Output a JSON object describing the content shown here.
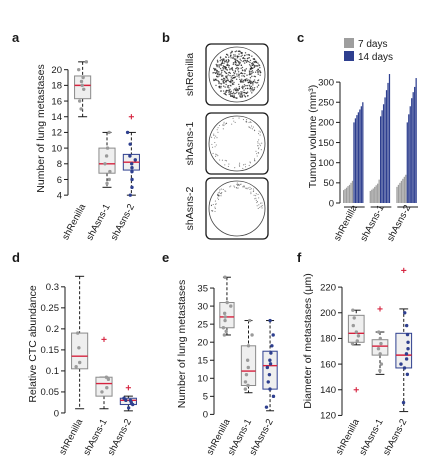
{
  "colors": {
    "axis": "#1a1a1a",
    "box_fill": "#efefef",
    "box_edge_gray": "#8a8a8a",
    "box_edge_blue": "#2e3f8f",
    "median": "#d6223e",
    "outlier": "#d6223e",
    "point_gray": "#9a9a9a",
    "point_blue": "#2e3f8f",
    "bar_7days": "#9e9e9e",
    "bar_14days": "#2e3f8f",
    "plate_edge": "#1a1a1a"
  },
  "chart_data": [
    {
      "panel": "a",
      "type": "box",
      "ylabel": "Number of lung metastases",
      "yticks": [
        4,
        6,
        8,
        10,
        12,
        14,
        16,
        18,
        20
      ],
      "ylim": [
        3,
        22
      ],
      "categories": [
        "shRenilla",
        "shAsns-1",
        "shAsns-2"
      ],
      "groups": [
        {
          "name": "shRenilla",
          "min": 14,
          "q1": 16.3,
          "median": 18,
          "q3": 19.2,
          "max": 21,
          "points": [
            21,
            20,
            19,
            18.5,
            18,
            17.5,
            16,
            15
          ],
          "outliers": [],
          "edge": "gray"
        },
        {
          "name": "shAsns-1",
          "min": 5,
          "q1": 6.8,
          "median": 8,
          "q3": 10,
          "max": 12,
          "points": [
            12,
            10,
            9,
            8,
            7,
            6,
            5.5
          ],
          "outliers": [],
          "edge": "gray"
        },
        {
          "name": "shAsns-2",
          "min": 4,
          "q1": 7.2,
          "median": 8.2,
          "q3": 9.2,
          "max": 12,
          "points": [
            12,
            10.5,
            9,
            8.5,
            8,
            7.5,
            7,
            6,
            5,
            4
          ],
          "outliers": [
            14
          ],
          "edge": "blue"
        }
      ]
    },
    {
      "panel": "b",
      "type": "image",
      "row_labels": [
        "shRenilla",
        "shAsns-1",
        "shAsns-2"
      ]
    },
    {
      "panel": "c",
      "type": "bar",
      "ylabel": "Tumour volume (mm³)",
      "yticks": [
        0,
        50,
        100,
        150,
        200,
        250,
        300
      ],
      "ylim": [
        0,
        330
      ],
      "categories": [
        "shRenilla",
        "shAsns-1",
        "shAsns-2"
      ],
      "legend": [
        "7 days",
        "14 days"
      ],
      "legend_position": "top-left",
      "series": [
        {
          "name": "7 days",
          "values_by_group": [
            [
              32,
              35,
              38,
              42,
              45,
              50,
              55
            ],
            [
              30,
              33,
              36,
              40,
              44,
              48,
              58
            ],
            [
              40,
              45,
              50,
              55,
              60,
              65,
              70
            ]
          ]
        },
        {
          "name": "14 days",
          "values_by_group": [
            [
              200,
              210,
              218,
              225,
              232,
              240,
              250
            ],
            [
              215,
              230,
              245,
              262,
              280,
              298,
              320
            ],
            [
              200,
              220,
              240,
              260,
              275,
              288,
              310
            ]
          ]
        }
      ]
    },
    {
      "panel": "d",
      "type": "box",
      "ylabel": "Relative CTC abundance",
      "yticks": [
        0,
        0.05,
        0.1,
        0.15,
        0.2,
        0.25,
        0.3
      ],
      "ytick_labels": [
        "0",
        "0.05",
        "0.1",
        "0.15",
        "0.2",
        "0.25",
        "0.3"
      ],
      "ylim": [
        -0.012,
        0.34
      ],
      "categories": [
        "shRenilla",
        "shAsns-1",
        "shAsns-2"
      ],
      "groups": [
        {
          "name": "shRenilla",
          "min": 0.01,
          "q1": 0.105,
          "median": 0.135,
          "q3": 0.19,
          "max": 0.325,
          "points": [
            0.19,
            0.155,
            0.12,
            0.11
          ],
          "outliers": [],
          "edge": "gray"
        },
        {
          "name": "shAsns-1",
          "min": 0.01,
          "q1": 0.04,
          "median": 0.07,
          "q3": 0.085,
          "max": 0.085,
          "points": [
            0.085,
            0.08,
            0.06,
            0.05
          ],
          "outliers": [
            0.175
          ],
          "edge": "gray"
        },
        {
          "name": "shAsns-2",
          "min": 0.005,
          "q1": 0.02,
          "median": 0.03,
          "q3": 0.035,
          "max": 0.04,
          "points": [
            0.035,
            0.03,
            0.03,
            0.025,
            0.02,
            0.012
          ],
          "outliers": [
            0.06
          ],
          "edge": "blue"
        }
      ]
    },
    {
      "panel": "e",
      "type": "box",
      "ylabel": "Number of lung metastases",
      "yticks": [
        0,
        5,
        10,
        15,
        20,
        25,
        30,
        35
      ],
      "ylim": [
        -1,
        40
      ],
      "categories": [
        "shRenilla",
        "shAsns-1",
        "shAsns-2"
      ],
      "groups": [
        {
          "name": "shRenilla",
          "min": 22,
          "q1": 24,
          "median": 27,
          "q3": 31,
          "max": 38,
          "points": [
            38,
            31,
            30,
            28,
            27,
            26,
            24,
            23,
            22
          ],
          "outliers": [],
          "edge": "gray"
        },
        {
          "name": "shAsns-1",
          "min": 6,
          "q1": 8,
          "median": 12,
          "q3": 19,
          "max": 26,
          "points": [
            26,
            22,
            19,
            15,
            13,
            11,
            9,
            8,
            7
          ],
          "outliers": [],
          "edge": "gray"
        },
        {
          "name": "shAsns-2",
          "min": 1,
          "q1": 7,
          "median": 13.5,
          "q3": 17.5,
          "max": 26,
          "points": [
            26,
            22,
            19,
            17,
            15,
            14,
            13,
            11,
            9,
            7,
            5,
            2
          ],
          "outliers": [],
          "edge": "blue"
        }
      ]
    },
    {
      "panel": "f",
      "type": "box",
      "ylabel": "Diameter of metastases (μm)",
      "yticks": [
        120,
        140,
        160,
        180,
        200,
        220
      ],
      "ylim": [
        118,
        238
      ],
      "categories": [
        "shRenilla",
        "shAsns-1",
        "shAsns-2"
      ],
      "groups": [
        {
          "name": "shRenilla",
          "min": 175,
          "q1": 177,
          "median": 184,
          "q3": 198,
          "max": 202,
          "points": [
            202,
            196,
            190,
            185,
            182,
            178,
            176
          ],
          "outliers": [
            140
          ],
          "edge": "gray"
        },
        {
          "name": "shAsns-1",
          "min": 152,
          "q1": 167,
          "median": 174,
          "q3": 179,
          "max": 185,
          "points": [
            185,
            180,
            176,
            172,
            168,
            160,
            155
          ],
          "outliers": [
            203
          ],
          "edge": "gray"
        },
        {
          "name": "shAsns-2",
          "min": 123,
          "q1": 157,
          "median": 167,
          "q3": 184,
          "max": 203,
          "points": [
            200,
            190,
            183,
            177,
            172,
            168,
            164,
            160,
            157,
            152,
            130
          ],
          "outliers": [
            233
          ],
          "edge": "blue"
        }
      ]
    }
  ]
}
